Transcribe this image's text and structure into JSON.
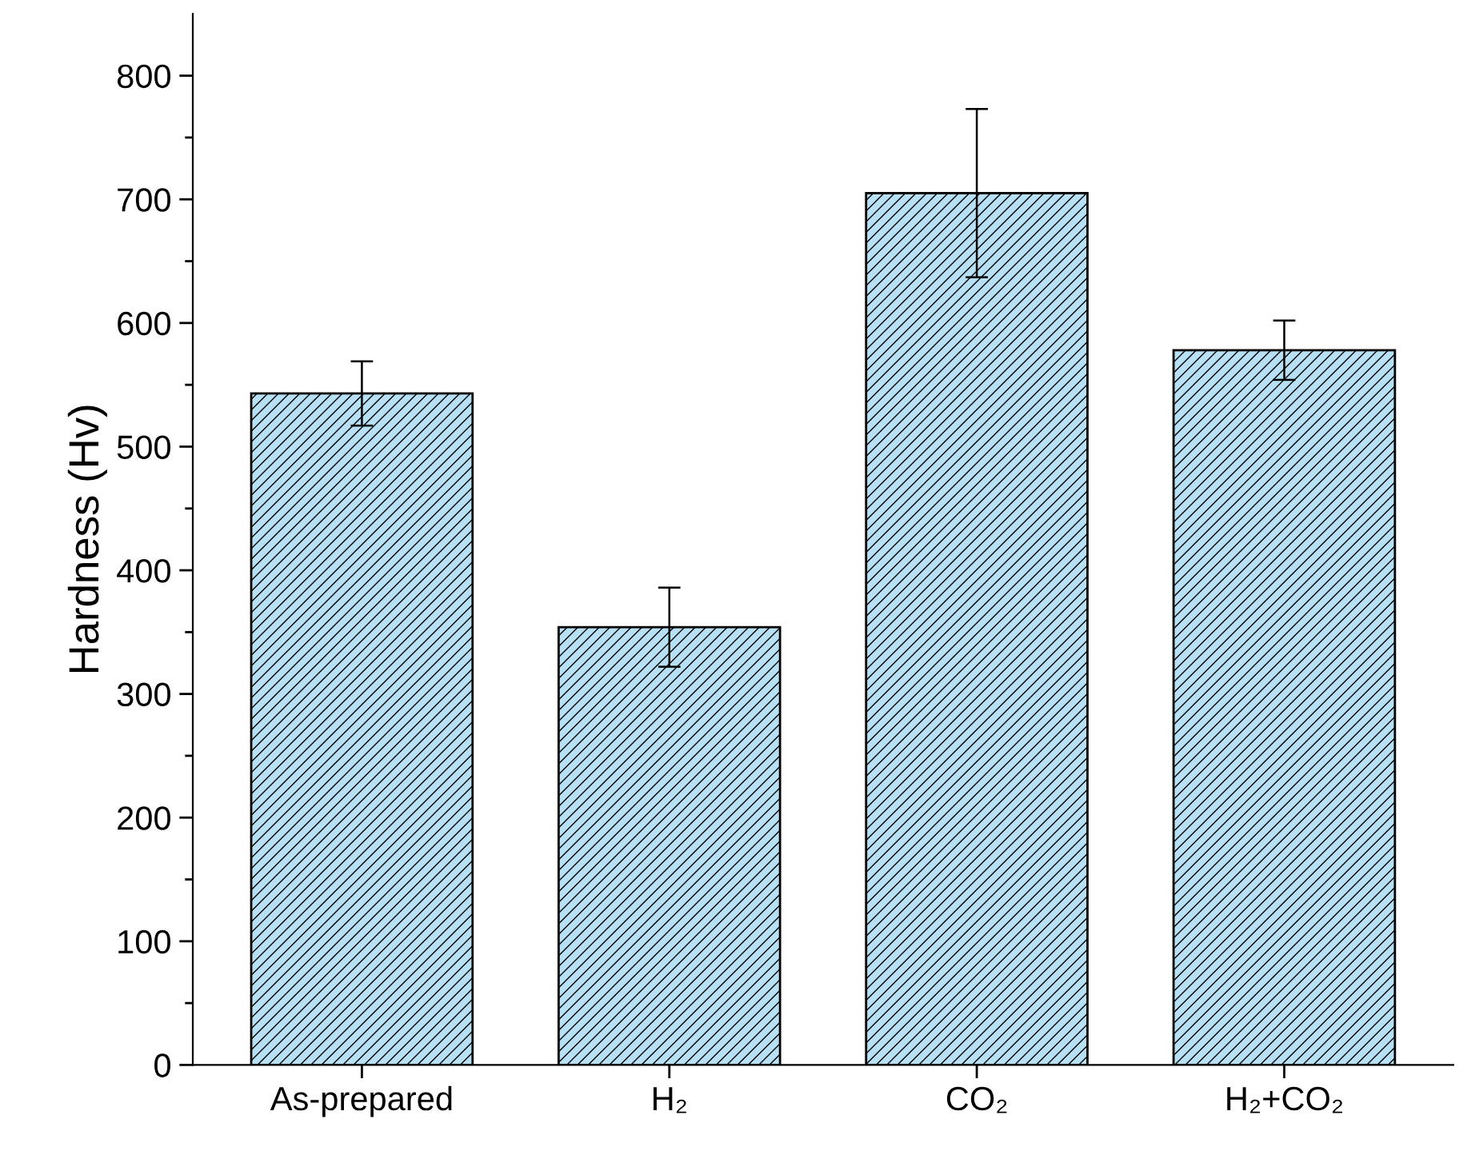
{
  "chart_data": {
    "type": "bar",
    "ylabel": "Hardness (Hv)",
    "categories": [
      "As-prepared",
      "H₂",
      "CO₂",
      "H₂+CO₂"
    ],
    "values": [
      543,
      354,
      705,
      578
    ],
    "errors": [
      26,
      32,
      68,
      24
    ],
    "color": "#b7e0f5",
    "ylim": [
      0,
      850
    ],
    "yticks": [
      0,
      100,
      200,
      300,
      400,
      500,
      600,
      700,
      800
    ],
    "grid": false,
    "legend": false
  }
}
